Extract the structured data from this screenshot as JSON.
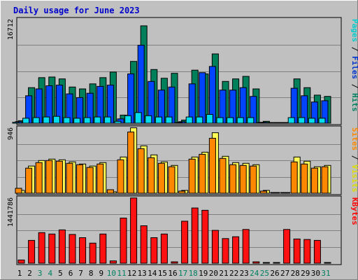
{
  "chart_data": {
    "type": "bar",
    "title": "Daily usage for June 2023",
    "days": [
      "1",
      "2",
      "3",
      "4",
      "5",
      "6",
      "7",
      "8",
      "9",
      "10",
      "11",
      "12",
      "13",
      "14",
      "15",
      "16",
      "17",
      "18",
      "19",
      "20",
      "21",
      "22",
      "23",
      "24",
      "25",
      "26",
      "27",
      "28",
      "29",
      "30",
      "31"
    ],
    "weekend_days": [
      "3",
      "4",
      "10",
      "11",
      "17",
      "18",
      "24",
      "25",
      "31"
    ],
    "panels": [
      {
        "name": "hits-files-pages",
        "y_max_label": "16712",
        "y_max": 16712,
        "side_labels": [
          {
            "text": "Pages",
            "color": "#00cccc"
          },
          {
            "text": " / ",
            "color": "#000000"
          },
          {
            "text": "Files",
            "color": "#0033cc"
          },
          {
            "text": " / ",
            "color": "#000000"
          },
          {
            "text": "Hits",
            "color": "#008060"
          }
        ],
        "series": [
          {
            "name": "Hits",
            "color": "#00805a",
            "values": [
              400,
              5700,
              7300,
              7400,
              7100,
              5800,
              5500,
              6300,
              7300,
              8200,
              1300,
              9900,
              15600,
              8600,
              7200,
              8000,
              500,
              8500,
              7900,
              11100,
              6700,
              7100,
              7500,
              5500,
              300,
              100,
              100,
              7100,
              5700,
              4500,
              4300
            ]
          },
          {
            "name": "Files",
            "color": "#0044ff",
            "values": [
              250,
              4400,
              5500,
              6000,
              6100,
              4700,
              4100,
              4800,
              5900,
              6100,
              700,
              7900,
              12500,
              6700,
              5300,
              5800,
              250,
              6300,
              8100,
              9100,
              5300,
              5300,
              5700,
              4300,
              150,
              50,
              50,
              5600,
              4400,
              3400,
              3600
            ]
          },
          {
            "name": "Pages",
            "color": "#00ddee",
            "values": [
              150,
              800,
              900,
              1000,
              1100,
              900,
              800,
              900,
              1000,
              1000,
              300,
              1200,
              1700,
              1200,
              1000,
              1000,
              100,
              1000,
              1000,
              1400,
              900,
              900,
              900,
              900,
              100,
              30,
              30,
              900,
              900,
              800,
              800
            ]
          }
        ]
      },
      {
        "name": "visits-sites",
        "y_max_label": "946",
        "y_max": 946,
        "side_labels": [
          {
            "text": "Sites",
            "color": "#ff8800"
          },
          {
            "text": " / ",
            "color": "#000000"
          },
          {
            "text": "Visits",
            "color": "#dddd00"
          }
        ],
        "series": [
          {
            "name": "Visits",
            "color": "#ffff55",
            "values": [
              40,
              390,
              470,
              490,
              480,
              450,
              420,
              390,
              440,
              20,
              520,
              940,
              680,
              550,
              450,
              400,
              40,
              520,
              590,
              870,
              530,
              440,
              430,
              410,
              40,
              10,
              10,
              520,
              460,
              380,
              400
            ]
          },
          {
            "name": "Sites",
            "color": "#ff8800",
            "values": [
              70,
              360,
              440,
              470,
              460,
              430,
              410,
              370,
              420,
              50,
              480,
              880,
              640,
              510,
              430,
              380,
              30,
              490,
              560,
              790,
              500,
              410,
              400,
              390,
              30,
              10,
              10,
              450,
              420,
              360,
              380
            ]
          }
        ]
      },
      {
        "name": "kbytes",
        "y_max_label": "1441786",
        "y_max": 1441786,
        "side_labels": [
          {
            "text": "KBytes",
            "color": "#ff0000"
          }
        ],
        "series": [
          {
            "name": "KBytes",
            "color": "#ff1111",
            "values": [
              70000,
              500000,
              670000,
              640000,
              730000,
              630000,
              560000,
              440000,
              640000,
              50000,
              990000,
              1430000,
              820000,
              560000,
              640000,
              30000,
              920000,
              1210000,
              1160000,
              720000,
              540000,
              580000,
              740000,
              30000,
              15000,
              15000,
              740000,
              530000,
              520000,
              500000,
              0
            ]
          }
        ]
      }
    ]
  }
}
